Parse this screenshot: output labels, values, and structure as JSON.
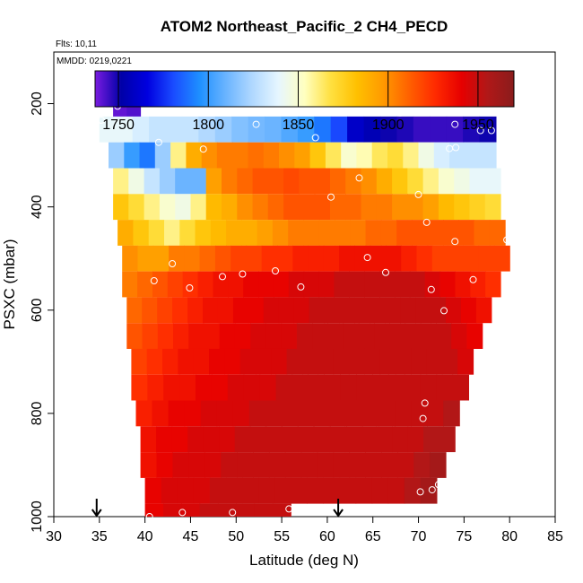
{
  "chart_data": {
    "type": "heatmap",
    "title": "ATOM2 Northeast_Pacific_2 CH4_PECD",
    "flights_label": "Flts: 10,11",
    "dates_label": "MMDD: 0219,0221",
    "xlabel": "Latitude (deg N)",
    "ylabel": "PSXC (mbar)",
    "xlim": [
      30,
      85
    ],
    "ylim": [
      1000,
      100
    ],
    "x_ticks": [
      "30",
      "35",
      "40",
      "45",
      "50",
      "55",
      "60",
      "65",
      "70",
      "75",
      "80",
      "85"
    ],
    "y_ticks": [
      "200",
      "400",
      "600",
      "800",
      "1000"
    ],
    "colorbar": {
      "range": [
        1737,
        1970
      ],
      "ticks": [
        "1750",
        "1800",
        "1850",
        "1900",
        "1950"
      ],
      "colors": [
        "#7a1ce0",
        "#0000a8",
        "#0000e0",
        "#1a4cff",
        "#1e90ff",
        "#6ab4ff",
        "#b0d8ff",
        "#e6f6ff",
        "#ffffc0",
        "#ffe040",
        "#ffc000",
        "#ff9a00",
        "#ff6000",
        "#ff2a00",
        "#e60000",
        "#b01818",
        "#8a1c1c"
      ]
    },
    "flight_track_arrows_lat": [
      34.7,
      61.2
    ],
    "grid_latitudes": [
      36.5,
      37.5,
      38.5,
      39.5,
      40.5,
      42,
      44,
      46,
      48,
      50,
      52,
      54,
      56,
      58,
      60,
      62,
      64,
      66,
      68,
      70,
      72,
      74,
      76,
      78,
      80
    ],
    "grid_pressures": [
      200,
      250,
      300,
      350,
      400,
      450,
      500,
      550,
      600,
      650,
      700,
      750,
      800,
      850,
      900,
      950,
      1000
    ],
    "ch4_ppb_by_level": [
      {
        "pressure": 200,
        "lat_range": [
          36.5,
          39.5
        ],
        "values": [
          1740,
          1742
        ]
      },
      {
        "pressure": 250,
        "lat_range": [
          35,
          78.5
        ],
        "values": [
          1840,
          1840,
          1835,
          1830,
          1830,
          1830,
          1825,
          1820,
          1815,
          1812,
          1810,
          1805,
          1800,
          1790,
          1780,
          1760,
          1755,
          1750,
          1748,
          1745,
          1745,
          1745,
          1748,
          1750
        ]
      },
      {
        "pressure": 300,
        "lat_range": [
          36,
          78.5
        ],
        "values": [
          1820,
          1800,
          1790,
          1820,
          1860,
          1890,
          1900,
          1905,
          1905,
          1908,
          1905,
          1900,
          1895,
          1880,
          1865,
          1850,
          1855,
          1865,
          1870,
          1860,
          1845,
          1835,
          1830,
          1830,
          1830
        ]
      },
      {
        "pressure": 350,
        "lat_range": [
          36.5,
          79
        ],
        "values": [
          1860,
          1845,
          1830,
          1820,
          1810,
          1810,
          1895,
          1905,
          1910,
          1915,
          1915,
          1918,
          1915,
          1915,
          1910,
          1905,
          1900,
          1890,
          1880,
          1870,
          1860,
          1850,
          1845,
          1840,
          1840
        ]
      },
      {
        "pressure": 400,
        "lat_range": [
          36.5,
          79
        ],
        "values": [
          1880,
          1870,
          1860,
          1850,
          1845,
          1860,
          1885,
          1890,
          1900,
          1905,
          1910,
          1915,
          1915,
          1915,
          1910,
          1910,
          1905,
          1905,
          1900,
          1900,
          1895,
          1885,
          1880,
          1875,
          1870
        ]
      },
      {
        "pressure": 450,
        "lat_range": [
          37,
          79.5
        ],
        "values": [
          1890,
          1880,
          1870,
          1860,
          1870,
          1880,
          1885,
          1890,
          1890,
          1895,
          1900,
          1905,
          1905,
          1905,
          1905,
          1905,
          1910,
          1910,
          1915,
          1915,
          1915,
          1915,
          1915,
          1910,
          1910
        ]
      },
      {
        "pressure": 500,
        "lat_range": [
          37.5,
          80
        ],
        "values": [
          1900,
          1895,
          1895,
          1905,
          1905,
          1910,
          1915,
          1920,
          1920,
          1925,
          1925,
          1930,
          1930,
          1930,
          1935,
          1935,
          1935,
          1935,
          1930,
          1925,
          1920,
          1920,
          1920,
          1920,
          1920
        ]
      },
      {
        "pressure": 550,
        "lat_range": [
          37.5,
          79
        ],
        "values": [
          1905,
          1910,
          1915,
          1920,
          1925,
          1930,
          1935,
          1935,
          1940,
          1940,
          1940,
          1945,
          1945,
          1945,
          1950,
          1950,
          1950,
          1950,
          1950,
          1950,
          1945,
          1940,
          1935,
          1930,
          1925
        ]
      },
      {
        "pressure": 600,
        "lat_range": [
          38,
          78
        ],
        "values": [
          1910,
          1915,
          1920,
          1925,
          1930,
          1935,
          1935,
          1940,
          1940,
          1945,
          1945,
          1945,
          1950,
          1950,
          1950,
          1950,
          1950,
          1950,
          1950,
          1950,
          1950,
          1945,
          1940,
          1935
        ]
      },
      {
        "pressure": 650,
        "lat_range": [
          38,
          77
        ],
        "values": [
          1915,
          1920,
          1925,
          1930,
          1935,
          1935,
          1940,
          1940,
          1945,
          1945,
          1945,
          1950,
          1950,
          1950,
          1950,
          1950,
          1950,
          1950,
          1950,
          1950,
          1950,
          1945,
          1940
        ]
      },
      {
        "pressure": 700,
        "lat_range": [
          38.5,
          76
        ],
        "values": [
          1920,
          1925,
          1930,
          1935,
          1935,
          1940,
          1940,
          1945,
          1945,
          1945,
          1950,
          1950,
          1950,
          1950,
          1950,
          1950,
          1950,
          1950,
          1950,
          1950,
          1950,
          1945
        ]
      },
      {
        "pressure": 750,
        "lat_range": [
          38.5,
          75.5
        ],
        "values": [
          1925,
          1930,
          1935,
          1935,
          1940,
          1940,
          1945,
          1945,
          1945,
          1950,
          1950,
          1950,
          1950,
          1950,
          1950,
          1950,
          1950,
          1950,
          1950,
          1950,
          1950
        ]
      },
      {
        "pressure": 800,
        "lat_range": [
          39,
          74.5
        ],
        "values": [
          1930,
          1935,
          1940,
          1940,
          1945,
          1945,
          1945,
          1950,
          1950,
          1950,
          1950,
          1950,
          1950,
          1950,
          1950,
          1950,
          1950,
          1950,
          1950,
          1955
        ]
      },
      {
        "pressure": 850,
        "lat_range": [
          39.5,
          74
        ],
        "values": [
          1935,
          1940,
          1940,
          1945,
          1945,
          1945,
          1950,
          1950,
          1950,
          1950,
          1950,
          1950,
          1950,
          1950,
          1950,
          1950,
          1950,
          1950,
          1955,
          1955
        ]
      },
      {
        "pressure": 900,
        "lat_range": [
          39.5,
          73
        ],
        "values": [
          1935,
          1940,
          1945,
          1945,
          1945,
          1950,
          1950,
          1950,
          1950,
          1950,
          1950,
          1950,
          1950,
          1950,
          1950,
          1950,
          1950,
          1955,
          1960
        ]
      },
      {
        "pressure": 950,
        "lat_range": [
          40,
          72
        ],
        "values": [
          1940,
          1945,
          1945,
          1945,
          1950,
          1950,
          1950,
          1950,
          1950,
          1950,
          1950,
          1950,
          1950,
          1950,
          1950,
          1950,
          1955,
          1960
        ]
      },
      {
        "pressure": 1000,
        "lat_range": [
          40,
          56
        ],
        "values": [
          1940,
          1945,
          1945,
          1950,
          1950,
          1950,
          1950,
          1950
        ]
      }
    ],
    "observations": [
      {
        "lat": 37.0,
        "p": 205
      },
      {
        "lat": 38.0,
        "p": 198
      },
      {
        "lat": 39.1,
        "p": 198
      },
      {
        "lat": 35.2,
        "p": 232
      },
      {
        "lat": 52.2,
        "p": 240
      },
      {
        "lat": 68.0,
        "p": 218
      },
      {
        "lat": 74.0,
        "p": 240
      },
      {
        "lat": 76.8,
        "p": 252
      },
      {
        "lat": 78.0,
        "p": 252
      },
      {
        "lat": 41.5,
        "p": 275
      },
      {
        "lat": 46.4,
        "p": 288
      },
      {
        "lat": 58.7,
        "p": 266
      },
      {
        "lat": 73.4,
        "p": 287
      },
      {
        "lat": 74.1,
        "p": 285
      },
      {
        "lat": 63.5,
        "p": 344
      },
      {
        "lat": 60.4,
        "p": 381
      },
      {
        "lat": 70.0,
        "p": 376
      },
      {
        "lat": 70.9,
        "p": 430
      },
      {
        "lat": 74.0,
        "p": 467
      },
      {
        "lat": 79.7,
        "p": 464
      },
      {
        "lat": 43.0,
        "p": 510
      },
      {
        "lat": 64.4,
        "p": 498
      },
      {
        "lat": 66.4,
        "p": 527
      },
      {
        "lat": 41.0,
        "p": 543
      },
      {
        "lat": 44.9,
        "p": 557
      },
      {
        "lat": 48.5,
        "p": 535
      },
      {
        "lat": 50.7,
        "p": 530
      },
      {
        "lat": 54.3,
        "p": 524
      },
      {
        "lat": 57.1,
        "p": 555
      },
      {
        "lat": 71.4,
        "p": 560
      },
      {
        "lat": 76.0,
        "p": 541
      },
      {
        "lat": 72.8,
        "p": 601
      },
      {
        "lat": 70.7,
        "p": 780
      },
      {
        "lat": 70.5,
        "p": 810
      },
      {
        "lat": 71.5,
        "p": 948
      },
      {
        "lat": 72.2,
        "p": 938
      },
      {
        "lat": 70.2,
        "p": 952
      },
      {
        "lat": 55.8,
        "p": 985
      },
      {
        "lat": 49.6,
        "p": 992
      },
      {
        "lat": 44.1,
        "p": 992
      },
      {
        "lat": 40.5,
        "p": 1000
      }
    ]
  }
}
